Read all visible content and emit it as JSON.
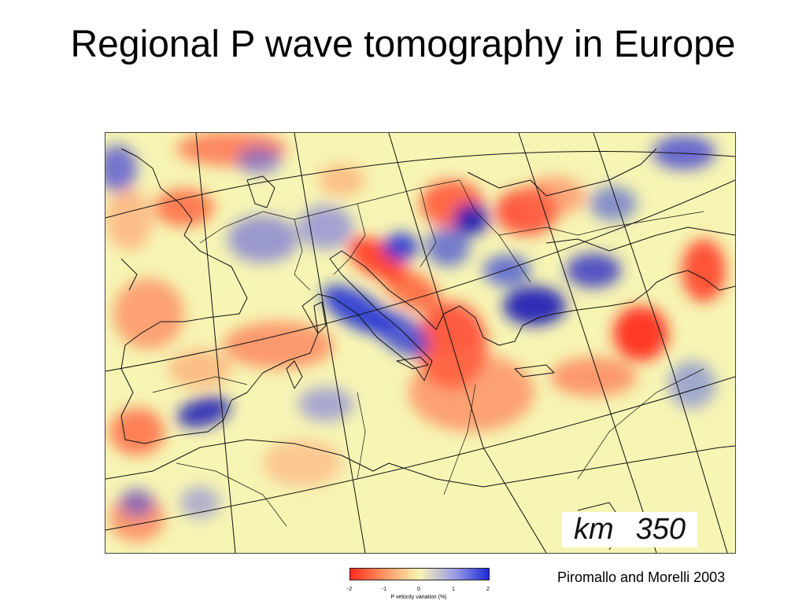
{
  "slide": {
    "title": "Regional P wave tomography in Europe"
  },
  "map": {
    "depth_unit": "km",
    "depth_value": "350",
    "colors": {
      "background": "#f7f5b4",
      "slow_anomaly": "#ff2a1a",
      "fast_anomaly": "#1a2ad6",
      "lines": "#111111"
    }
  },
  "colorbar": {
    "ticks": [
      "-2",
      "-1",
      "0",
      "1",
      "2"
    ],
    "label": "P velocity variation (%)"
  },
  "citation": "Piromallo and Morelli 2003"
}
